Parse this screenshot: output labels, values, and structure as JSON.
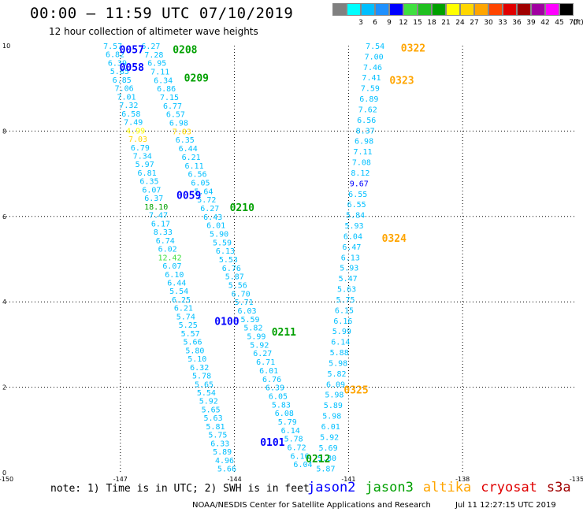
{
  "header": {
    "title": "00:00 – 11:59 UTC 07/10/2019",
    "subtitle": "12 hour collection of altimeter wave heights"
  },
  "colorbar": {
    "unit_label": "(ft)",
    "items": [
      {
        "color": "#808080",
        "label": ""
      },
      {
        "color": "#00ffff",
        "label": "3"
      },
      {
        "color": "#00bfff",
        "label": "6"
      },
      {
        "color": "#1e90ff",
        "label": "9"
      },
      {
        "color": "#0000ff",
        "label": "12"
      },
      {
        "color": "#40e040",
        "label": "15"
      },
      {
        "color": "#20c020",
        "label": "18"
      },
      {
        "color": "#00a000",
        "label": "21"
      },
      {
        "color": "#ffff00",
        "label": "24"
      },
      {
        "color": "#ffd700",
        "label": "27"
      },
      {
        "color": "#ffa500",
        "label": "30"
      },
      {
        "color": "#ff4500",
        "label": "33"
      },
      {
        "color": "#e00000",
        "label": "36"
      },
      {
        "color": "#a00000",
        "label": "39"
      },
      {
        "color": "#a000a0",
        "label": "42"
      },
      {
        "color": "#ff00ff",
        "label": "45"
      },
      {
        "color": "#000000",
        "label": "70"
      }
    ]
  },
  "chart_data": {
    "type": "scatter",
    "xlim": [
      -150,
      -135
    ],
    "ylim": [
      0,
      10
    ],
    "xticks": [
      -150,
      -147,
      -144,
      -141,
      -138,
      -135
    ],
    "yticks": [
      0,
      2,
      4,
      6,
      8,
      10
    ],
    "grid": true,
    "value_color": "#00bfff",
    "tracks": [
      {
        "values": [
          "7.57",
          "6.82",
          "6.39",
          "5.85",
          "6.85",
          "7.06",
          "7.01",
          "7.32",
          "6.58",
          "7.49",
          "4.99",
          "7.03",
          "6.79",
          "7.34",
          "5.97",
          "6.81",
          "6.35",
          "6.07",
          "6.37",
          "18.10",
          "7.47",
          "6.17",
          "8.33",
          "6.74",
          "6.02",
          "12.42",
          "6.07",
          "6.10",
          "6.44",
          "5.54",
          "6.25",
          "6.21",
          "5.74",
          "5.25",
          "5.57",
          "5.66",
          "5.80",
          "5.10",
          "6.32",
          "5.78",
          "5.65",
          "5.54",
          "5.92",
          "5.65",
          "5.63",
          "5.81",
          "5.75",
          "6.33",
          "5.89",
          "4.96",
          "5.66"
        ],
        "x0": -147.2,
        "y0": 10.0,
        "x1": -144.2,
        "y1": 0.1
      },
      {
        "values": [
          "6.27",
          "7.28",
          "6.95",
          "7.11",
          "6.34",
          "6.86",
          "7.15",
          "6.77",
          "6.57",
          "6.98",
          "7.03",
          "6.35",
          "6.44",
          "6.21",
          "6.11",
          "6.56",
          "6.05",
          "5.64",
          "5.72",
          "6.27",
          "6.43",
          "6.01",
          "5.90",
          "5.59",
          "6.13",
          "5.53",
          "6.76",
          "5.87",
          "5.56",
          "6.70",
          "5.71",
          "6.03",
          "5.59",
          "5.82",
          "5.99",
          "5.92",
          "6.27",
          "6.71",
          "6.01",
          "6.76",
          "6.39",
          "6.05",
          "5.83",
          "6.08",
          "5.79",
          "6.14",
          "5.78",
          "6.72",
          "6.16",
          "6.04"
        ],
        "x0": -146.2,
        "y0": 10.0,
        "x1": -142.2,
        "y1": 0.2
      },
      {
        "values": [
          "7.54",
          "7.00",
          "7.46",
          "7.41",
          "7.59",
          "6.89",
          "7.62",
          "6.56",
          "8.37",
          "6.98",
          "7.11",
          "7.08",
          "8.12",
          "9.67",
          "6.55",
          "6.55",
          "5.84",
          "5.93",
          "6.04",
          "6.47",
          "6.13",
          "5.93",
          "5.47",
          "5.63",
          "5.75",
          "6.15",
          "6.16",
          "5.99",
          "6.14",
          "5.88",
          "5.98",
          "5.82",
          "6.09",
          "5.98",
          "5.89",
          "5.98",
          "6.01",
          "5.92",
          "5.69",
          "5.80",
          "5.87"
        ],
        "x0": -140.3,
        "y0": 10.0,
        "x1": -141.6,
        "y1": 0.1
      }
    ],
    "special_colors": {
      "4.99": "#ffff00",
      "18.10": "#00a000",
      "12.42": "#40e040",
      "9.67": "#0000ff",
      "8.37": "#00bfff",
      "7.03": "#ffd700"
    },
    "time_labels": [
      {
        "text": "0057",
        "x": -146.7,
        "y": 9.92,
        "color": "#0000ff"
      },
      {
        "text": "0208",
        "x": -145.3,
        "y": 9.92,
        "color": "#00a000"
      },
      {
        "text": "0058",
        "x": -146.7,
        "y": 9.5,
        "color": "#0000ff"
      },
      {
        "text": "0209",
        "x": -145.0,
        "y": 9.25,
        "color": "#00a000"
      },
      {
        "text": "0059",
        "x": -145.2,
        "y": 6.5,
        "color": "#0000ff"
      },
      {
        "text": "0210",
        "x": -143.8,
        "y": 6.22,
        "color": "#00a000"
      },
      {
        "text": "0100",
        "x": -144.2,
        "y": 3.55,
        "color": "#0000ff"
      },
      {
        "text": "0211",
        "x": -142.7,
        "y": 3.3,
        "color": "#00a000"
      },
      {
        "text": "0101",
        "x": -143.0,
        "y": 0.72,
        "color": "#0000ff"
      },
      {
        "text": "0212",
        "x": -141.8,
        "y": 0.33,
        "color": "#00a000"
      },
      {
        "text": "0322",
        "x": -139.3,
        "y": 9.95,
        "color": "#ffa500"
      },
      {
        "text": "0323",
        "x": -139.6,
        "y": 9.2,
        "color": "#ffa500"
      },
      {
        "text": "0324",
        "x": -139.8,
        "y": 5.5,
        "color": "#ffa500"
      },
      {
        "text": "0325",
        "x": -140.8,
        "y": 1.95,
        "color": "#ffa500"
      }
    ]
  },
  "notes": {
    "text": "note: 1) Time is in UTC; 2) SWH is in feet"
  },
  "legend": {
    "items": [
      {
        "label": "jason2",
        "color": "#0000ff"
      },
      {
        "label": "jason3",
        "color": "#00a000"
      },
      {
        "label": "altika",
        "color": "#ffa500"
      },
      {
        "label": "cryosat",
        "color": "#e00000"
      },
      {
        "label": "s3a",
        "color": "#a00000"
      }
    ]
  },
  "footer": {
    "credit": "NOAA/NESDIS Center for Satellite Applications and Research",
    "timestamp": "Jul 11 12:27:15 UTC 2019"
  }
}
